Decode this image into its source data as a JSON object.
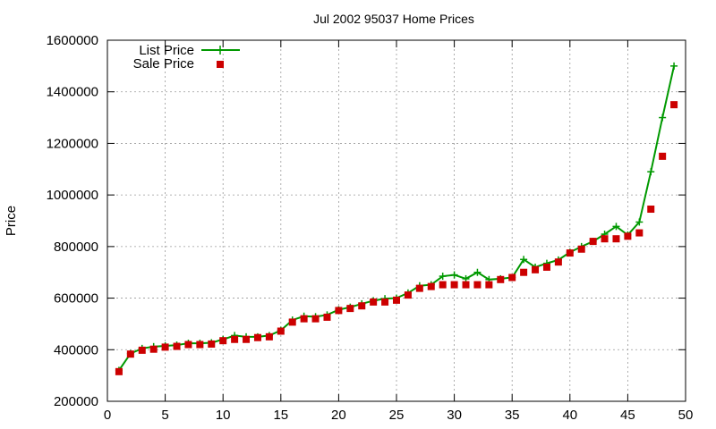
{
  "chart_data": {
    "type": "line",
    "title": "Jul 2002 95037 Home Prices",
    "xlabel": "",
    "ylabel": "Price",
    "xlim": [
      0,
      50
    ],
    "ylim": [
      200000,
      1600000
    ],
    "xticks": [
      0,
      5,
      10,
      15,
      20,
      25,
      30,
      35,
      40,
      45,
      50
    ],
    "yticks": [
      200000,
      400000,
      600000,
      800000,
      1000000,
      1200000,
      1400000,
      1600000
    ],
    "grid": true,
    "legend_position": "top-left",
    "series": [
      {
        "name": "List Price",
        "style": "line-plus",
        "color": "#009900",
        "x": [
          1,
          2,
          3,
          4,
          5,
          6,
          7,
          8,
          9,
          10,
          11,
          12,
          13,
          14,
          15,
          16,
          17,
          18,
          19,
          20,
          21,
          22,
          23,
          24,
          25,
          26,
          27,
          28,
          29,
          30,
          31,
          32,
          33,
          34,
          35,
          36,
          37,
          38,
          39,
          40,
          41,
          42,
          43,
          44,
          45,
          46,
          47,
          48,
          49
        ],
        "values": [
          320000,
          385000,
          405000,
          412000,
          415000,
          418000,
          425000,
          425000,
          427000,
          440000,
          455000,
          450000,
          450000,
          455000,
          475000,
          515000,
          530000,
          528000,
          535000,
          555000,
          565000,
          578000,
          590000,
          598000,
          600000,
          620000,
          648000,
          652000,
          685000,
          690000,
          675000,
          700000,
          672000,
          675000,
          680000,
          750000,
          720000,
          735000,
          748000,
          778000,
          800000,
          820000,
          848000,
          878000,
          845000,
          895000,
          1090000,
          1300000,
          1500000
        ]
      },
      {
        "name": "Sale Price",
        "style": "square",
        "color": "#cc0000",
        "x": [
          1,
          2,
          3,
          4,
          5,
          6,
          7,
          8,
          9,
          10,
          11,
          12,
          13,
          14,
          15,
          16,
          17,
          18,
          19,
          20,
          21,
          22,
          23,
          24,
          25,
          26,
          27,
          28,
          29,
          30,
          31,
          32,
          33,
          34,
          35,
          36,
          37,
          38,
          39,
          40,
          41,
          42,
          43,
          44,
          45,
          46,
          47,
          48,
          49
        ],
        "values": [
          315000,
          383000,
          398000,
          402000,
          410000,
          413000,
          420000,
          420000,
          422000,
          435000,
          440000,
          440000,
          447000,
          450000,
          472000,
          507000,
          520000,
          520000,
          526000,
          552000,
          560000,
          570000,
          585000,
          585000,
          592000,
          612000,
          638000,
          645000,
          652000,
          652000,
          652000,
          652000,
          652000,
          672000,
          680000,
          700000,
          710000,
          720000,
          740000,
          775000,
          790000,
          820000,
          830000,
          830000,
          840000,
          853000,
          945000,
          1150000,
          1350000
        ]
      }
    ]
  }
}
